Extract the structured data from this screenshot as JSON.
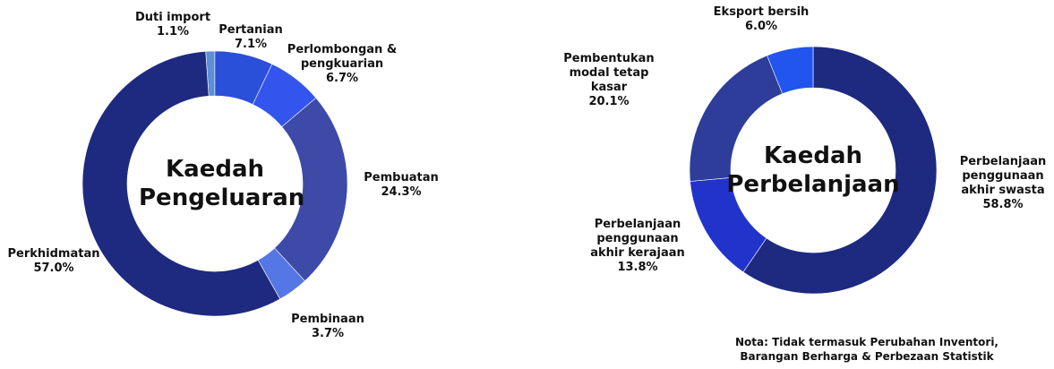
{
  "chart_data": [
    {
      "type": "pie",
      "center_label": "Kaedah Pengeluaran",
      "categories": [
        "Duti import",
        "Pertanian",
        "Perlombongan & pengkuarian",
        "Pembuatan",
        "Pembinaan",
        "Perkhidmatan"
      ],
      "values": [
        1.1,
        7.1,
        6.7,
        24.3,
        3.7,
        57.0
      ],
      "value_labels": [
        "1.1%",
        "7.1%",
        "6.7%",
        "24.3%",
        "3.7%",
        "57.0%"
      ],
      "colors": [
        "#5b8fd6",
        "#2a4fd8",
        "#3355ee",
        "#3d4aa8",
        "#5577e6",
        "#1e2a80"
      ]
    },
    {
      "type": "pie",
      "center_label": "Kaedah Perbelanjaan",
      "categories": [
        "Perbelanjaan penggunaan akhir swasta",
        "Perbelanjaan penggunaan akhir kerajaan",
        "Pembentukan modal tetap kasar",
        "Eksport bersih"
      ],
      "values": [
        58.8,
        13.8,
        20.1,
        6.0
      ],
      "value_labels": [
        "58.8%",
        "13.8%",
        "20.1%",
        "6.0%"
      ],
      "colors": [
        "#1e2a80",
        "#2233cc",
        "#2e3d99",
        "#2255ee"
      ],
      "annotation": "Nota: Tidak termasuk Perubahan Inventori, Barangan Berharga & Perbezaan Statistik"
    }
  ]
}
